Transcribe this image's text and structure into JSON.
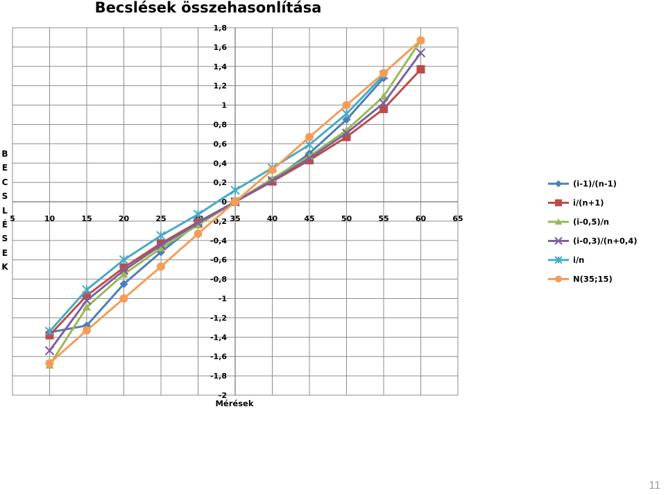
{
  "chart_data": {
    "type": "line",
    "title": "Becslések összehasonlítása",
    "xlabel": "Mérések",
    "ylabel": "BECSLÉSEK",
    "xlim": [
      5,
      65
    ],
    "ylim": [
      -2,
      1.8
    ],
    "x_ticks": [
      5,
      10,
      15,
      20,
      25,
      30,
      35,
      40,
      45,
      50,
      55,
      60,
      65
    ],
    "y_ticks": [
      1.8,
      1.6,
      1.4,
      1.2,
      1,
      0.8,
      0.6,
      0.4,
      0.2,
      0,
      -0.2,
      -0.4,
      -0.6,
      -0.8,
      -1,
      -1.2,
      -1.4,
      -1.6,
      -1.8,
      -2
    ],
    "x_tick_labels": [
      "5",
      "10",
      "15",
      "20",
      "25",
      "30",
      "35",
      "40",
      "45",
      "50",
      "55",
      "60",
      "65"
    ],
    "y_tick_labels": [
      "1,8",
      "1,6",
      "1,4",
      "1,2",
      "1",
      "0,8",
      "0,6",
      "0,4",
      "0,2",
      "0",
      "-0,2",
      "-0,4",
      "-0,6",
      "-0,8",
      "-1",
      "-1,2",
      "-1,4",
      "-1,6",
      "-1,8",
      "-2"
    ],
    "grid": true,
    "legend_position": "right",
    "series": [
      {
        "name": "(i-1)/(n-1)",
        "color": "#4a7ebb",
        "marker": "diamond",
        "x": [
          10,
          15,
          20,
          25,
          30,
          35,
          40,
          45,
          50,
          55
        ],
        "y": [
          -1.35,
          -1.28,
          -0.85,
          -0.52,
          -0.22,
          0,
          0.22,
          0.5,
          0.85,
          1.28
        ]
      },
      {
        "name": "i/(n+1)",
        "color": "#be4b48",
        "marker": "square",
        "x": [
          10,
          15,
          20,
          25,
          30,
          35,
          40,
          45,
          50,
          55,
          60
        ],
        "y": [
          -1.38,
          -0.97,
          -0.68,
          -0.43,
          -0.21,
          0,
          0.21,
          0.43,
          0.67,
          0.96,
          1.37
        ]
      },
      {
        "name": "(i-0,5)/n",
        "color": "#98b954",
        "marker": "triangle",
        "x": [
          10,
          15,
          20,
          25,
          30,
          35,
          40,
          45,
          50,
          55,
          60
        ],
        "y": [
          -1.69,
          -1.09,
          -0.75,
          -0.48,
          -0.24,
          0,
          0.24,
          0.47,
          0.74,
          1.09,
          1.67
        ]
      },
      {
        "name": "(i-0,3)/(n+0,4)",
        "color": "#7d60a0",
        "marker": "x",
        "x": [
          10,
          15,
          20,
          25,
          30,
          35,
          40,
          45,
          50,
          55,
          60
        ],
        "y": [
          -1.54,
          -1.02,
          -0.71,
          -0.45,
          -0.22,
          0,
          0.22,
          0.45,
          0.71,
          1.02,
          1.54
        ]
      },
      {
        "name": "i/n",
        "color": "#46aac5",
        "marker": "star",
        "x": [
          10,
          15,
          20,
          25,
          30,
          35,
          40,
          45,
          50,
          55
        ],
        "y": [
          -1.34,
          -0.91,
          -0.6,
          -0.35,
          -0.13,
          0.12,
          0.35,
          0.59,
          0.91,
          1.31
        ]
      },
      {
        "name": "N(35;15)",
        "color": "#f59d56",
        "marker": "circle",
        "x": [
          10,
          15,
          20,
          25,
          30,
          35,
          40,
          45,
          50,
          55,
          60
        ],
        "y": [
          -1.67,
          -1.33,
          -1.0,
          -0.67,
          -0.33,
          0,
          0.33,
          0.67,
          1.0,
          1.33,
          1.67
        ]
      }
    ]
  },
  "ylabel_letters": [
    "B",
    "E",
    "C",
    "S",
    "L",
    "É",
    "S",
    "E",
    "K"
  ],
  "page_number": "11"
}
